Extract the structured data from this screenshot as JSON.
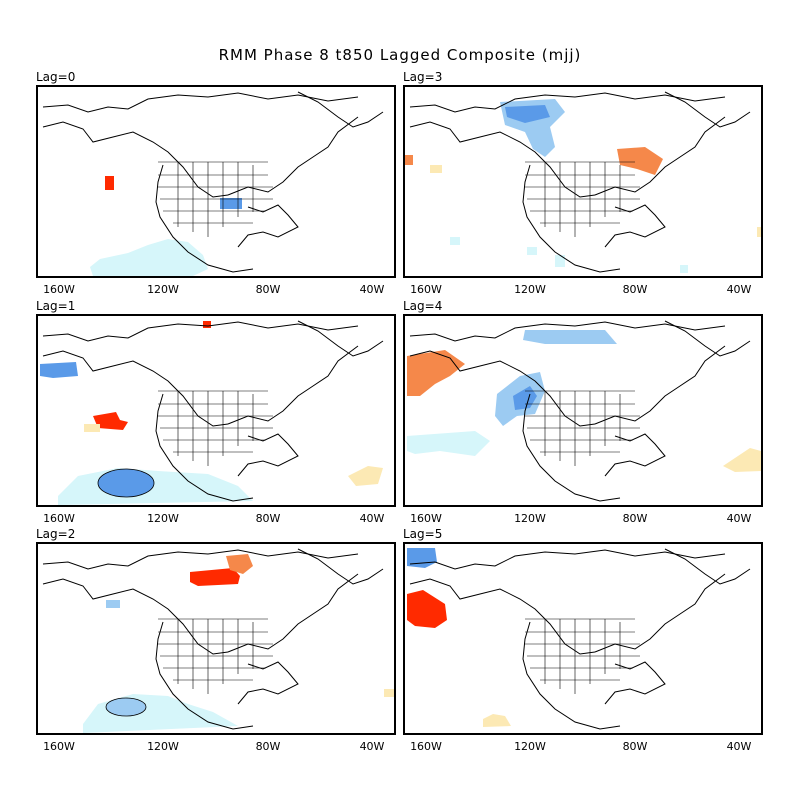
{
  "title": "RMM Phase 8 t850 Lagged Composite (mjj)",
  "x_tick_labels": [
    "160W",
    "120W",
    "80W",
    "40W"
  ],
  "colors": {
    "strong_warm": "#ff2a00",
    "warm": "#f5884a",
    "weak_warm": "#fce9b4",
    "strong_cold": "#5a9ae8",
    "cold": "#9ccbf2",
    "weak_cold": "#d6f6fa",
    "coast": "#000000"
  },
  "panels": [
    {
      "label": "Lag=0"
    },
    {
      "label": "Lag=3"
    },
    {
      "label": "Lag=1"
    },
    {
      "label": "Lag=4"
    },
    {
      "label": "Lag=2"
    },
    {
      "label": "Lag=5"
    }
  ]
}
